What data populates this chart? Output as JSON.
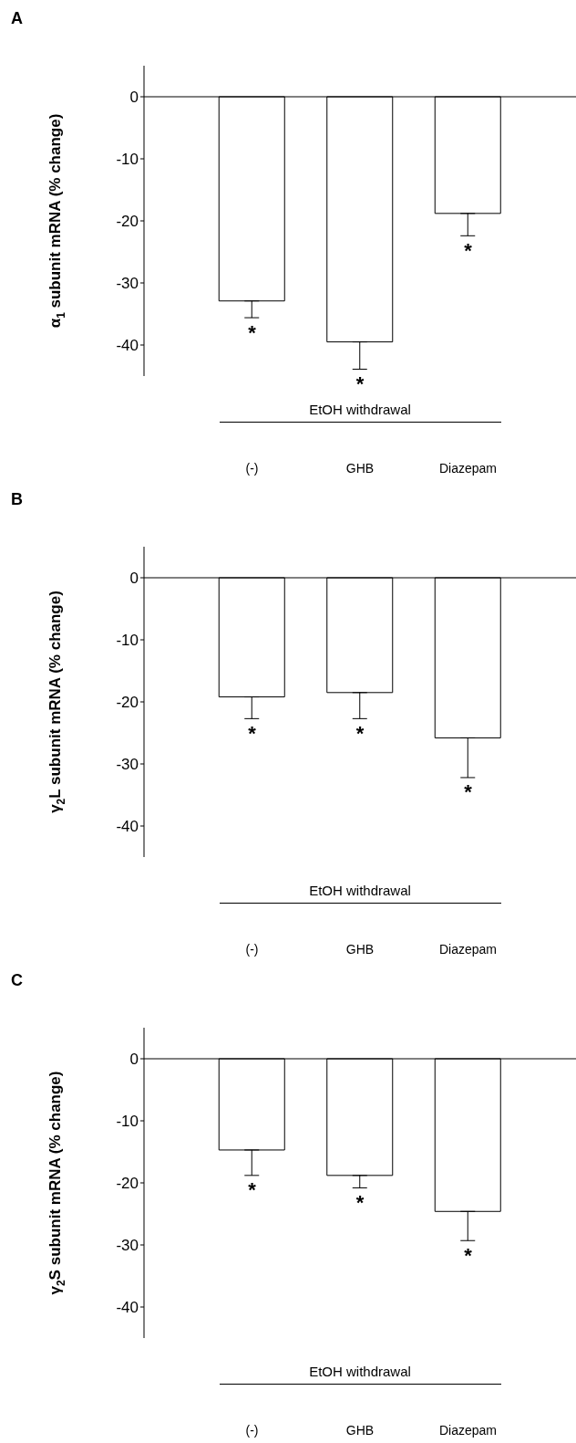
{
  "chart_data": [
    {
      "type": "bar",
      "title": "A",
      "ylabel": "α$_{1}$ subunit mRNA (% change)",
      "categories": [
        "(-)",
        "GHB",
        "Diazepam"
      ],
      "values": [
        -32.9,
        -39.5,
        -18.8
      ],
      "errors": [
        [
          -35.6,
          -32.9
        ],
        [
          -43.9,
          -39.5
        ],
        [
          -22.4,
          -18.8
        ]
      ],
      "color": "#ffffff",
      "ylim": [
        -45,
        5
      ],
      "yticks": [
        0,
        -10,
        -20,
        -30,
        -40
      ],
      "ref_lines": [
        {
          "axis": "y",
          "value": 0
        }
      ],
      "annotations": [
        {
          "text": "*",
          "x": "(-)",
          "y": -32.9
        },
        {
          "text": "*",
          "x": "GHB",
          "y": -39.5
        },
        {
          "text": "*",
          "x": "Diazepam",
          "y": -18.8
        },
        "EtOH withdrawal"
      ]
    },
    {
      "type": "bar",
      "title": "B",
      "ylabel": "γ$_{2}$L subunit mRNA (% change)",
      "categories": [
        "(-)",
        "GHB",
        "Diazepam"
      ],
      "values": [
        -19.2,
        -18.5,
        -25.8
      ],
      "errors": [
        [
          -22.7,
          -19.2
        ],
        [
          -22.7,
          -18.5
        ],
        [
          -32.2,
          -25.8
        ]
      ],
      "color": "#ffffff",
      "ylim": [
        -45,
        5
      ],
      "yticks": [
        0,
        -10,
        -20,
        -30,
        -40
      ],
      "ref_lines": [
        {
          "axis": "y",
          "value": 0
        }
      ],
      "annotations": [
        {
          "text": "*",
          "x": "(-)",
          "y": -19.2
        },
        {
          "text": "*",
          "x": "GHB",
          "y": -18.5
        },
        {
          "text": "*",
          "x": "Diazepam",
          "y": -25.8
        },
        "EtOH withdrawal"
      ]
    },
    {
      "type": "bar",
      "title": "C",
      "ylabel": "γ$_{2}$S subunit mRNA (% change)",
      "categories": [
        "(-)",
        "GHB",
        "Diazepam"
      ],
      "values": [
        -14.7,
        -18.8,
        -24.6
      ],
      "errors": [
        [
          -18.8,
          -14.7
        ],
        [
          -20.8,
          -18.8
        ],
        [
          -29.3,
          -24.6
        ]
      ],
      "color": "#ffffff",
      "ylim": [
        -45,
        5
      ],
      "yticks": [
        0,
        -10,
        -20,
        -30,
        -40
      ],
      "ref_lines": [
        {
          "axis": "y",
          "value": 0
        }
      ],
      "annotations": [
        {
          "text": "*",
          "x": "(-)",
          "y": -14.7
        },
        {
          "text": "*",
          "x": "GHB",
          "y": -18.8
        },
        {
          "text": "*",
          "x": "Diazepam",
          "y": -24.6
        },
        "EtOH withdrawal"
      ]
    }
  ]
}
